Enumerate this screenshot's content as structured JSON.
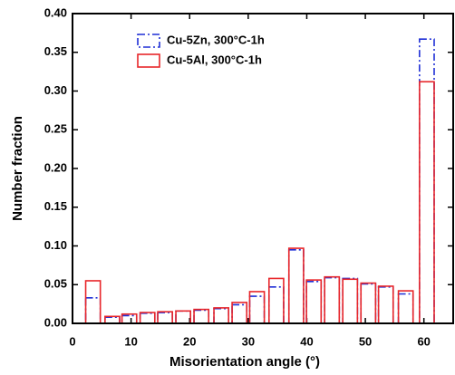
{
  "chart_data": {
    "type": "histogram",
    "xlabel": "Misorientation angle (°)",
    "ylabel": "Number fraction",
    "x": [
      3.5,
      6.8,
      9.7,
      12.8,
      15.8,
      18.9,
      22,
      25.4,
      28.5,
      31.5,
      34.8,
      38.2,
      41.2,
      44.3,
      47.4,
      50.5,
      53.5,
      56.9,
      60.5
    ],
    "series": [
      {
        "name": "Cu-5Zn, 300°C-1h",
        "color": "#1f2fd6",
        "style": "dashdot",
        "values": [
          0.033,
          0.008,
          0.01,
          0.013,
          0.014,
          0.016,
          0.017,
          0.019,
          0.024,
          0.035,
          0.047,
          0.095,
          0.054,
          0.059,
          0.058,
          0.051,
          0.047,
          0.038,
          0.367
        ]
      },
      {
        "name": "Cu-5Al, 300°C-1h",
        "color": "#e8262a",
        "style": "solid",
        "values": [
          0.055,
          0.009,
          0.012,
          0.014,
          0.015,
          0.016,
          0.018,
          0.02,
          0.027,
          0.041,
          0.058,
          0.097,
          0.056,
          0.06,
          0.057,
          0.052,
          0.048,
          0.042,
          0.312
        ]
      }
    ],
    "xlim": [
      0,
      65
    ],
    "xticks": [
      0,
      10,
      20,
      30,
      40,
      50,
      60
    ],
    "ylim": [
      0,
      0.4
    ],
    "yticks": [
      {
        "value": 0,
        "label": "0.00"
      },
      {
        "value": 0.05,
        "label": "0.05"
      },
      {
        "value": 0.1,
        "label": "0.10"
      },
      {
        "value": 0.15,
        "label": "0.15"
      },
      {
        "value": 0.2,
        "label": "0.20"
      },
      {
        "value": 0.25,
        "label": "0.25"
      },
      {
        "value": 0.3,
        "label": "0.30"
      },
      {
        "value": 0.35,
        "label": "0.35"
      },
      {
        "value": 0.4,
        "label": "0.40"
      }
    ],
    "legend": "upper left"
  }
}
